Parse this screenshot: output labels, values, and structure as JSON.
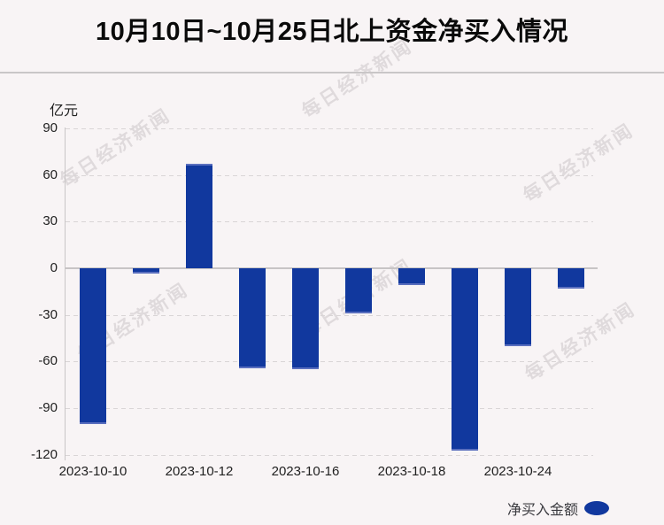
{
  "title": "10月10日~10月25日北上资金净买入情况",
  "watermark_text": "每日经济新闻",
  "chart_data": {
    "type": "bar",
    "title": "10月10日~10月25日北上资金净买入情况",
    "unit_label": "亿元",
    "series_name": "净买入金额",
    "categories": [
      "2023-10-10",
      "",
      "2023-10-12",
      "",
      "2023-10-16",
      "",
      "2023-10-18",
      "",
      "2023-10-24",
      ""
    ],
    "values": [
      -100,
      -3.5,
      67,
      -64,
      -65,
      -29,
      -11,
      -117,
      -50,
      -13
    ],
    "x_tick_labels": [
      "2023-10-10",
      "2023-10-12",
      "2023-10-16",
      "2023-10-18",
      "2023-10-24"
    ],
    "x_tick_bar_indexes": [
      0,
      2,
      4,
      6,
      8
    ],
    "y_ticks": [
      90,
      60,
      30,
      0,
      -30,
      -60,
      -90,
      -120
    ],
    "ylim": [
      -120,
      90
    ],
    "grid": "horizontal-dashed",
    "legend": {
      "label": "净买入金额",
      "position": "bottom-right"
    },
    "bar_color": "#11389e"
  },
  "colors": {
    "background": "#f8f4f5",
    "bar": "#11389e",
    "bar_edge": "#5a6fbe",
    "grid_dashed": "#d9d5d6",
    "axis": "#c7c4c5",
    "text": "#212121",
    "title": "#0a0a0a",
    "legend_text": "#3b3b40"
  }
}
